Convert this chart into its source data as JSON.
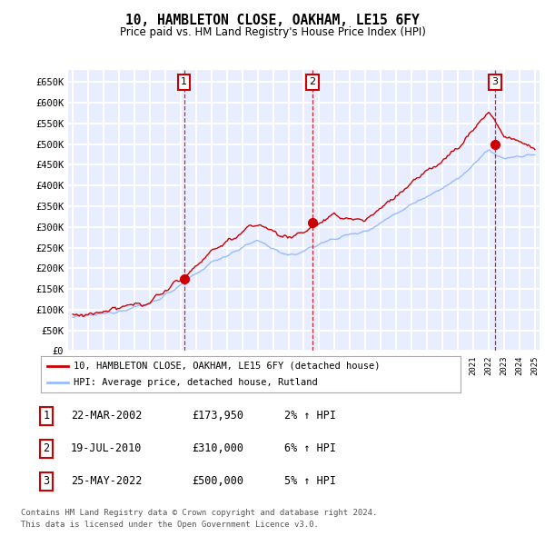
{
  "title": "10, HAMBLETON CLOSE, OAKHAM, LE15 6FY",
  "subtitle": "Price paid vs. HM Land Registry's House Price Index (HPI)",
  "ylim": [
    0,
    680000
  ],
  "yticks": [
    0,
    50000,
    100000,
    150000,
    200000,
    250000,
    300000,
    350000,
    400000,
    450000,
    500000,
    550000,
    600000,
    650000
  ],
  "bg_color": "#e8eeff",
  "grid_color": "#ffffff",
  "line_red_color": "#cc0000",
  "line_blue_color": "#99bbff",
  "sale_border_color": "#cc0000",
  "sale_prices": [
    173950,
    310000,
    500000
  ],
  "sale_decimal_years": [
    2002.22,
    2010.55,
    2022.4
  ],
  "legend_line1": "10, HAMBLETON CLOSE, OAKHAM, LE15 6FY (detached house)",
  "legend_line2": "HPI: Average price, detached house, Rutland",
  "table_rows": [
    [
      "1",
      "22-MAR-2002",
      "£173,950",
      "2% ↑ HPI"
    ],
    [
      "2",
      "19-JUL-2010",
      "£310,000",
      "6% ↑ HPI"
    ],
    [
      "3",
      "25-MAY-2022",
      "£500,000",
      "5% ↑ HPI"
    ]
  ],
  "footer1": "Contains HM Land Registry data © Crown copyright and database right 2024.",
  "footer2": "This data is licensed under the Open Government Licence v3.0.",
  "x_start_year": 1995,
  "x_end_year": 2025
}
